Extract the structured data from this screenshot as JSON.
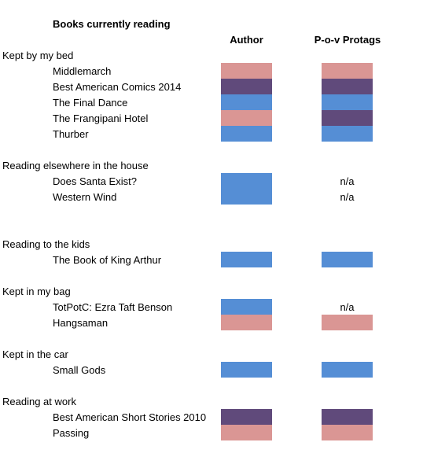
{
  "title": "Books currently reading",
  "columns": {
    "author": "Author",
    "pov": "P-o-v Protags"
  },
  "colors": {
    "pink": "#da9694",
    "purple": "#604a7b",
    "blue": "#558ed5"
  },
  "sections": [
    {
      "label": "Kept by my bed",
      "books": [
        {
          "title": "Middlemarch",
          "author": "pink",
          "pov": "pink"
        },
        {
          "title": "Best American Comics 2014",
          "author": "purple",
          "pov": "purple"
        },
        {
          "title": "The Final Dance",
          "author": "blue",
          "pov": "blue"
        },
        {
          "title": "The Frangipani Hotel",
          "author": "pink",
          "pov": "purple"
        },
        {
          "title": "Thurber",
          "author": "blue",
          "pov": "blue"
        }
      ]
    },
    {
      "label": "Reading elsewhere in the house",
      "books": [
        {
          "title": "Does Santa Exist?",
          "author": "blue",
          "pov": "n/a"
        },
        {
          "title": "Western Wind",
          "author": "blue",
          "pov": "n/a"
        }
      ]
    },
    {
      "label": "Reading to the kids",
      "books": [
        {
          "title": "The Book of King Arthur",
          "author": "blue",
          "pov": "blue"
        }
      ]
    },
    {
      "label": "Kept in my bag",
      "books": [
        {
          "title": "TotPotC: Ezra Taft Benson",
          "author": "blue",
          "pov": "n/a"
        },
        {
          "title": "Hangsaman",
          "author": "pink",
          "pov": "pink"
        }
      ]
    },
    {
      "label": "Kept in the car",
      "books": [
        {
          "title": "Small Gods",
          "author": "blue",
          "pov": "blue"
        }
      ]
    },
    {
      "label": "Reading at work",
      "books": [
        {
          "title": "Best American Short Stories 2010",
          "author": "purple",
          "pov": "purple"
        },
        {
          "title": "Passing",
          "author": "pink",
          "pov": "pink"
        }
      ]
    }
  ]
}
